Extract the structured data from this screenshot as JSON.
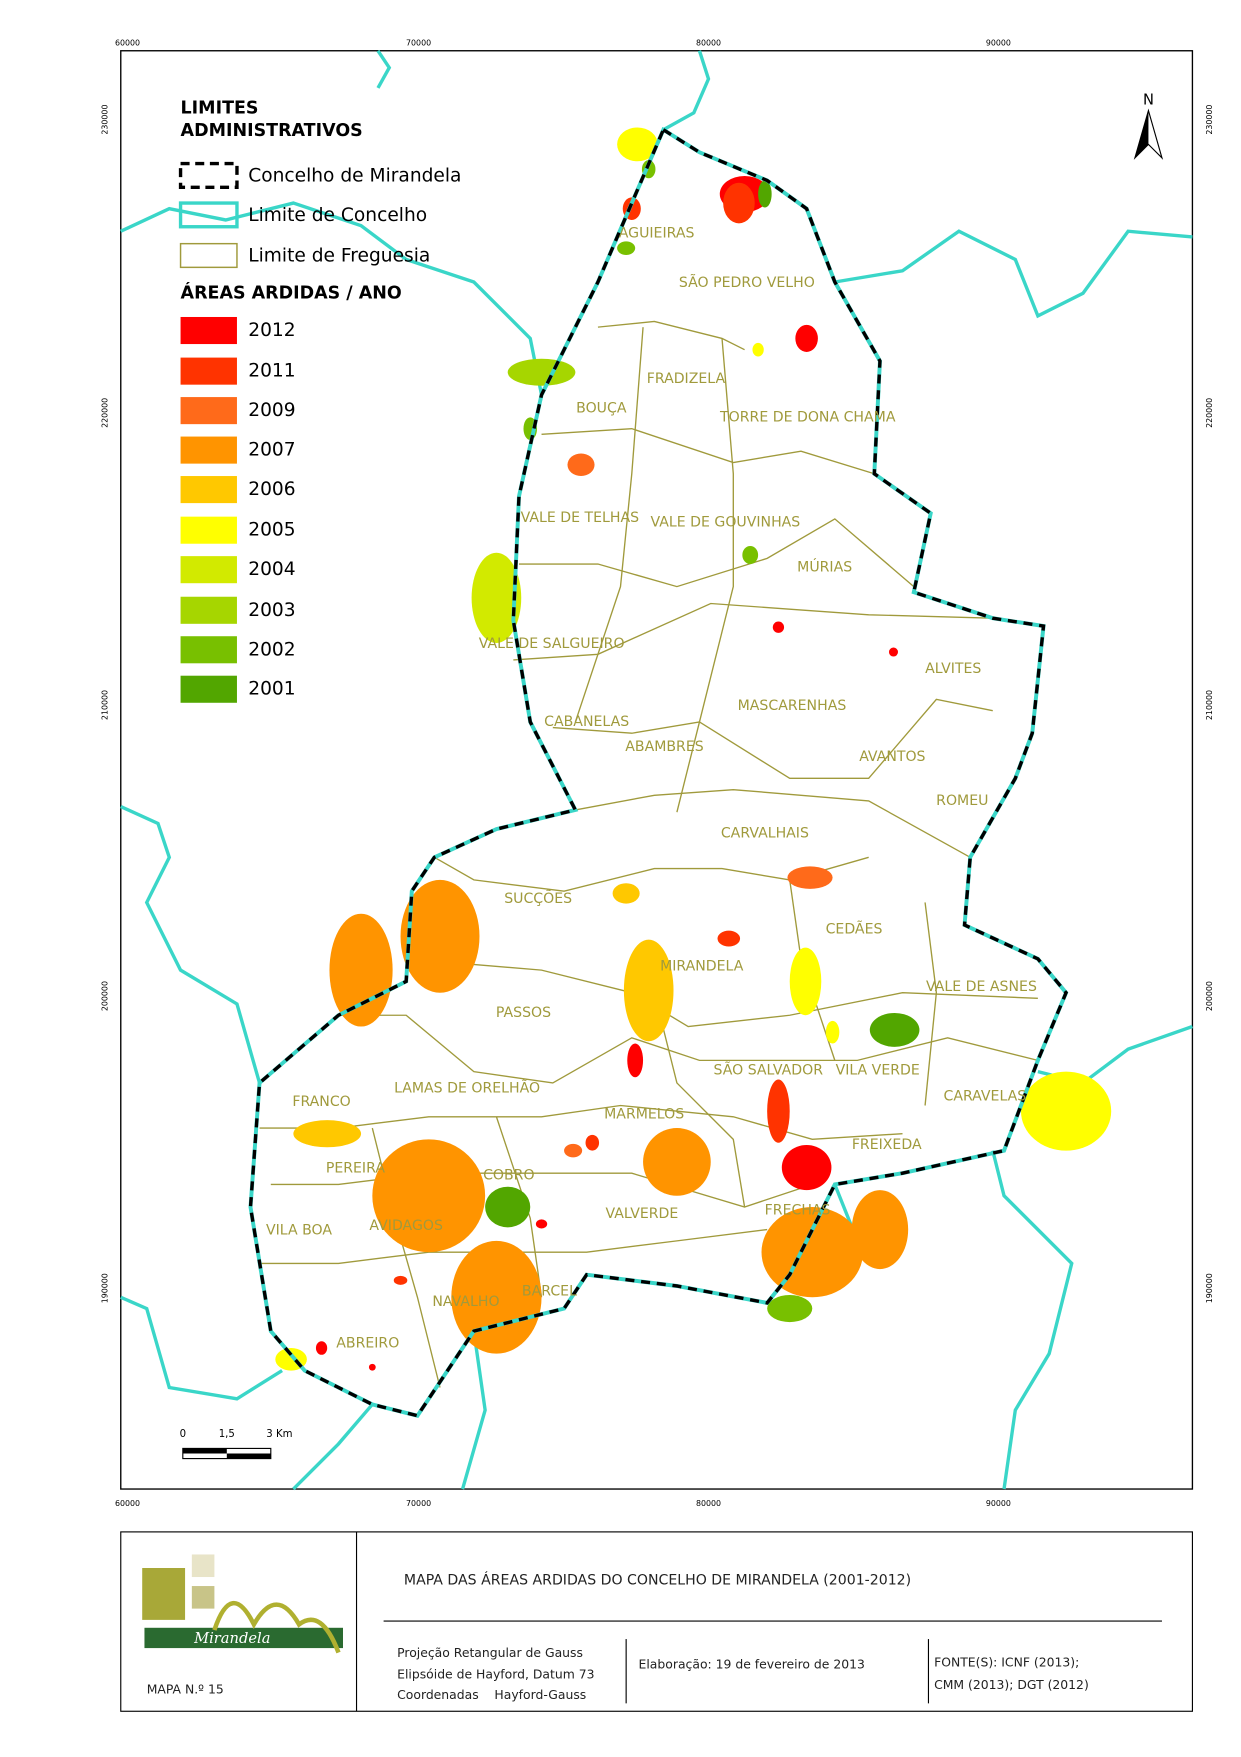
{
  "coordinates": {
    "top": [
      "60000",
      "70000",
      "80000",
      "90000"
    ],
    "bottom": [
      "60000",
      "70000",
      "80000",
      "90000"
    ],
    "left": [
      "230000",
      "220000",
      "210000",
      "200000",
      "190000"
    ],
    "right": [
      "230000",
      "220000",
      "210000",
      "200000",
      "190000"
    ]
  },
  "legend": {
    "title_line_1": "LIMITES",
    "title_line_2": "ADMINISTRATIVOS",
    "boundaries": [
      "Concelho de Mirandela",
      "Limite de Concelho",
      "Limite de Freguesia"
    ],
    "burned_title": "ÁREAS ARDIDAS / ANO",
    "years": [
      {
        "label": "2012",
        "color": "#ff0000"
      },
      {
        "label": "2011",
        "color": "#ff3300"
      },
      {
        "label": "2009",
        "color": "#ff6a1a"
      },
      {
        "label": "2007",
        "color": "#ff9400"
      },
      {
        "label": "2006",
        "color": "#ffc800"
      },
      {
        "label": "2005",
        "color": "#ffff00"
      },
      {
        "label": "2004",
        "color": "#d2ea00"
      },
      {
        "label": "2003",
        "color": "#a6d600"
      },
      {
        "label": "2002",
        "color": "#78c000"
      },
      {
        "label": "2001",
        "color": "#52a600"
      }
    ]
  },
  "north": "N",
  "scale_bar": [
    "0",
    "1,5",
    "3 Km"
  ],
  "parishes": [
    "AGUIEIRAS",
    "SÃO PEDRO VELHO",
    "FRADIZELA",
    "BOUÇA",
    "TORRE DE DONA CHAMA",
    "VALE DE TELHAS",
    "VALE DE GOUVINHAS",
    "MÚRIAS",
    "VALE DE SALGUEIRO",
    "ALVITES",
    "MASCARENHAS",
    "CABANELAS",
    "ABAMBRES",
    "AVANTOS",
    "ROMEU",
    "CARVALHAIS",
    "SUCÇÕES",
    "CEDÃES",
    "MIRANDELA",
    "VALE DE ASNES",
    "PASSOS",
    "SÃO SALVADOR",
    "VILA VERDE",
    "LAMAS DE ORELHÃO",
    "FRANCO",
    "CARAVELAS",
    "MARMELOS",
    "FREIXEDA",
    "PEREIRA",
    "COBRO",
    "VALVERDE",
    "FRECHAS",
    "AVIDAGOS",
    "VILA BOA",
    "BARCEL",
    "NAVALHO",
    "ABREIRO"
  ],
  "title_block": {
    "logo_text": "Mirandela",
    "map_number": "MAPA N.º 15",
    "title": "MAPA DAS ÁREAS ARDIDAS DO CONCELHO DE MIRANDELA (2001-2012)",
    "projection": [
      "Projeção Retangular de Gauss",
      "Elipsóide de Hayford, Datum 73",
      "Coordenadas    Hayford-Gauss"
    ],
    "elaboration": "Elaboração: 19 de fevereiro de 2013",
    "sources": [
      "FONTE(S): ICNF (2013);",
      "CMM (2013); DGT (2012)"
    ]
  }
}
